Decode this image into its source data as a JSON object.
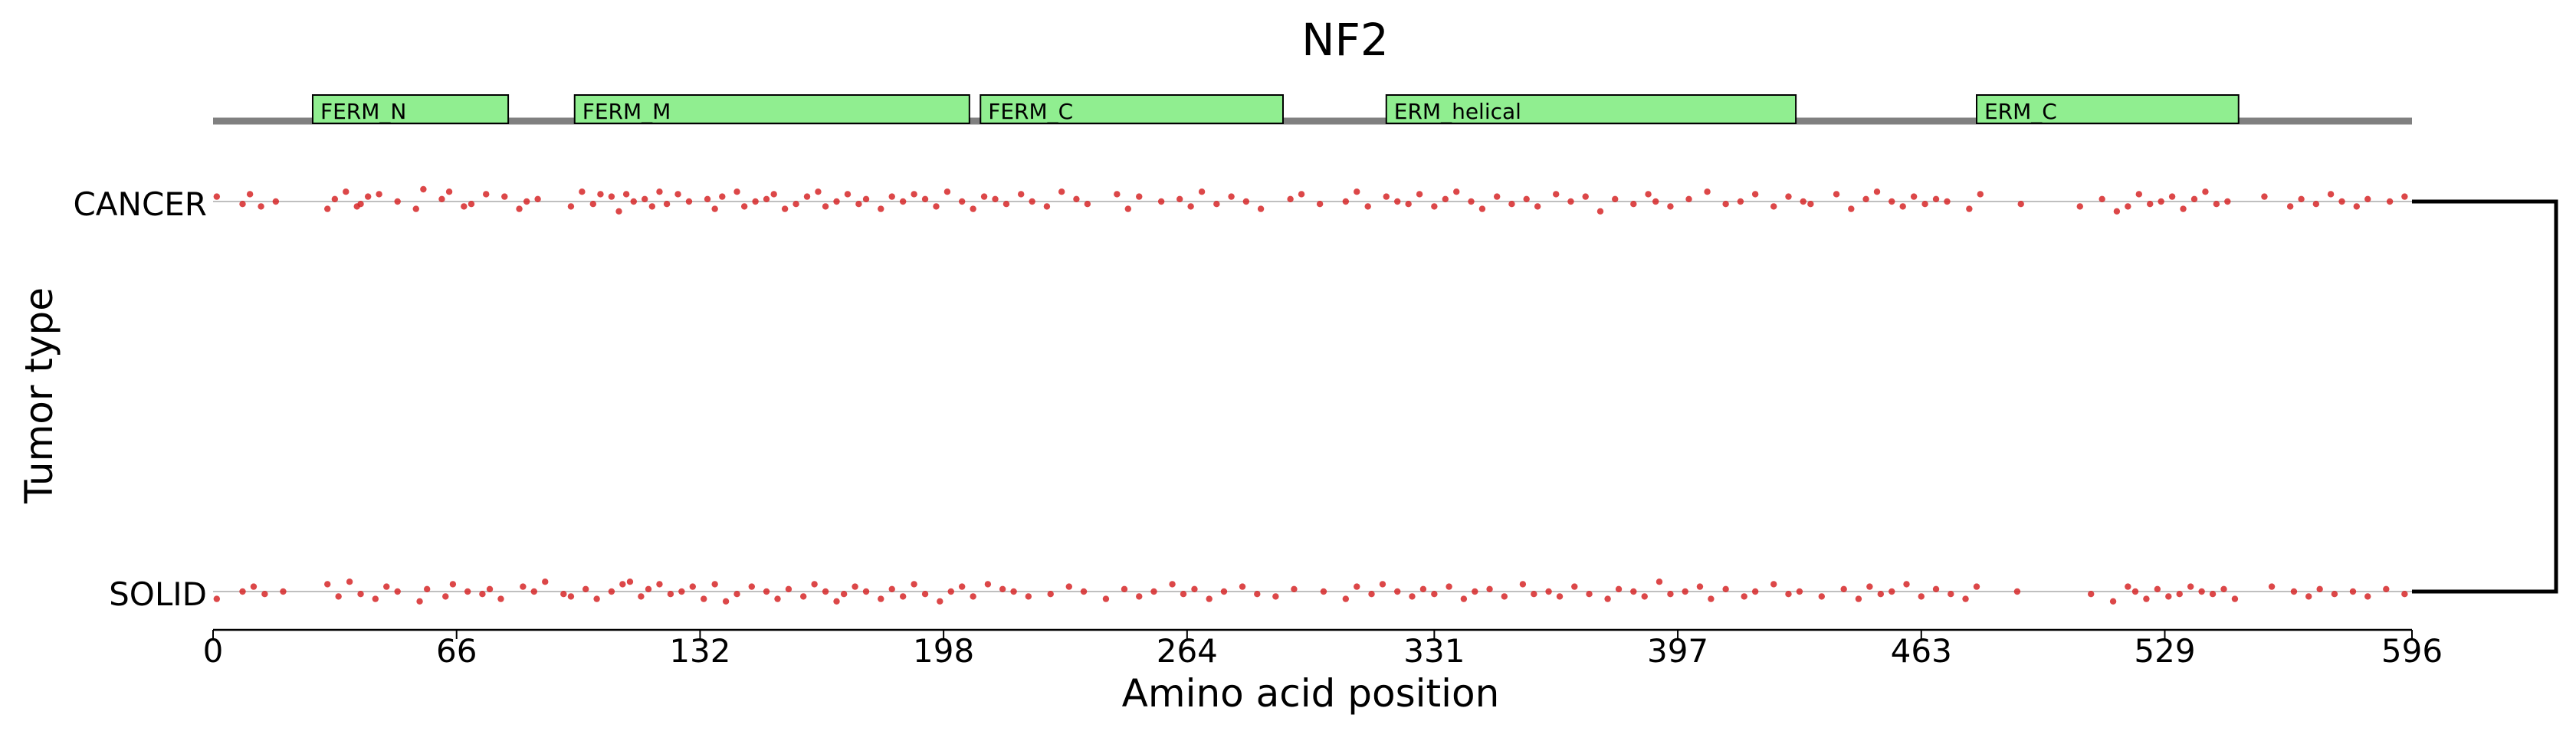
{
  "chart_data": {
    "type": "scatter",
    "title": "NF2",
    "xlabel": "Amino acid position",
    "ylabel": "Tumor type",
    "xlim": [
      0,
      596
    ],
    "xticks": [
      0,
      66,
      132,
      198,
      264,
      331,
      397,
      463,
      529,
      596
    ],
    "categories": [
      "CANCER",
      "SOLID"
    ],
    "domains": [
      {
        "name": "FERM_N",
        "start": 27,
        "end": 80
      },
      {
        "name": "FERM_M",
        "start": 98,
        "end": 205
      },
      {
        "name": "FERM_C",
        "start": 208,
        "end": 290
      },
      {
        "name": "ERM_helical",
        "start": 318,
        "end": 429
      },
      {
        "name": "ERM_C",
        "start": 478,
        "end": 549
      }
    ],
    "series": [
      {
        "name": "CANCER",
        "positions": [
          1,
          8,
          10,
          13,
          17,
          31,
          33,
          36,
          39,
          40,
          42,
          45,
          50,
          55,
          57,
          62,
          64,
          68,
          70,
          74,
          79,
          83,
          85,
          88,
          97,
          100,
          103,
          105,
          108,
          110,
          112,
          114,
          117,
          119,
          121,
          123,
          126,
          129,
          134,
          136,
          138,
          142,
          144,
          147,
          150,
          152,
          155,
          158,
          161,
          164,
          166,
          169,
          172,
          175,
          177,
          181,
          184,
          187,
          190,
          193,
          196,
          199,
          203,
          206,
          209,
          212,
          215,
          219,
          222,
          226,
          230,
          234,
          237,
          245,
          248,
          251,
          257,
          262,
          265,
          268,
          272,
          276,
          280,
          284,
          292,
          295,
          300,
          307,
          310,
          313,
          318,
          321,
          324,
          327,
          331,
          334,
          337,
          341,
          344,
          348,
          352,
          356,
          359,
          364,
          368,
          372,
          376,
          380,
          385,
          389,
          391,
          395,
          400,
          405,
          410,
          414,
          418,
          423,
          427,
          431,
          433,
          440,
          444,
          448,
          451,
          455,
          458,
          461,
          464,
          467,
          470,
          476,
          479,
          490,
          506,
          512,
          516,
          519,
          522,
          525,
          528,
          531,
          534,
          537,
          540,
          543,
          546,
          556,
          563,
          566,
          570,
          574,
          577,
          581,
          584,
          590,
          594
        ],
        "jitter": [
          -2,
          1,
          -3,
          2,
          0,
          3,
          -1,
          -4,
          2,
          1,
          -2,
          -3,
          0,
          3,
          -5,
          -1,
          -4,
          2,
          1,
          -3,
          -2,
          3,
          0,
          -1,
          2,
          -4,
          1,
          -3,
          -2,
          4,
          -3,
          0,
          -1,
          2,
          -4,
          1,
          -3,
          0,
          -1,
          3,
          -2,
          -4,
          2,
          0,
          -1,
          -3,
          3,
          1,
          -2,
          -4,
          2,
          0,
          -3,
          1,
          -1,
          3,
          -2,
          0,
          -3,
          -1,
          2,
          -4,
          0,
          3,
          -2,
          -1,
          1,
          -3,
          0,
          2,
          -4,
          -1,
          1,
          -3,
          3,
          -2,
          0,
          -1,
          2,
          -4,
          1,
          -2,
          0,
          3,
          -1,
          -3,
          1,
          0,
          -4,
          2,
          -2,
          0,
          1,
          -3,
          2,
          -1,
          -4,
          0,
          3,
          -2,
          1,
          -1,
          2,
          -3,
          0,
          -2,
          4,
          -1,
          1,
          -3,
          0,
          2,
          -1,
          -4,
          1,
          0,
          -3,
          2,
          -2,
          0,
          1,
          -3,
          3,
          -1,
          -4,
          0,
          2,
          -2,
          1,
          -1,
          0,
          3,
          -3,
          1,
          2,
          -1,
          4,
          2,
          -3,
          1,
          0,
          -2,
          3,
          -1,
          -4,
          1,
          0,
          -2,
          2,
          -1,
          1,
          -3,
          0,
          2,
          -1,
          0,
          -2
        ]
      },
      {
        "name": "SOLID",
        "positions": [
          1,
          8,
          11,
          14,
          19,
          31,
          34,
          37,
          40,
          44,
          47,
          50,
          56,
          58,
          63,
          65,
          69,
          73,
          75,
          78,
          84,
          87,
          90,
          95,
          97,
          101,
          104,
          108,
          111,
          113,
          116,
          118,
          121,
          124,
          127,
          130,
          133,
          136,
          139,
          142,
          146,
          150,
          153,
          156,
          160,
          163,
          166,
          169,
          171,
          174,
          177,
          181,
          184,
          187,
          190,
          193,
          197,
          200,
          203,
          206,
          210,
          214,
          217,
          221,
          227,
          232,
          236,
          242,
          247,
          251,
          255,
          260,
          263,
          266,
          270,
          274,
          279,
          283,
          288,
          293,
          301,
          307,
          310,
          314,
          317,
          321,
          325,
          328,
          331,
          335,
          339,
          342,
          346,
          350,
          355,
          358,
          362,
          365,
          369,
          373,
          378,
          381,
          385,
          388,
          392,
          395,
          399,
          403,
          406,
          410,
          415,
          418,
          423,
          427,
          430,
          436,
          442,
          446,
          449,
          452,
          455,
          459,
          463,
          467,
          471,
          475,
          478,
          489,
          509,
          515,
          519,
          521,
          524,
          527,
          530,
          533,
          536,
          539,
          542,
          545,
          548,
          558,
          564,
          568,
          571,
          575,
          580,
          584,
          589,
          594
        ],
        "jitter": [
          3,
          0,
          -2,
          1,
          0,
          -3,
          2,
          -4,
          1,
          3,
          -2,
          0,
          4,
          -1,
          2,
          -3,
          0,
          1,
          -1,
          3,
          -2,
          0,
          -4,
          1,
          2,
          -1,
          3,
          0,
          -3,
          -4,
          2,
          -1,
          -3,
          1,
          0,
          -2,
          3,
          -3,
          4,
          1,
          -2,
          0,
          3,
          -1,
          2,
          -3,
          0,
          4,
          1,
          -2,
          0,
          3,
          -1,
          2,
          -3,
          1,
          4,
          0,
          -2,
          2,
          -3,
          -1,
          0,
          2,
          1,
          -2,
          0,
          3,
          -1,
          2,
          0,
          -3,
          1,
          -1,
          3,
          0,
          -2,
          1,
          2,
          -1,
          0,
          3,
          -2,
          1,
          -3,
          0,
          2,
          -1,
          1,
          -2,
          3,
          0,
          -1,
          2,
          -3,
          1,
          0,
          2,
          -2,
          1,
          3,
          -1,
          0,
          2,
          -4,
          1,
          0,
          -2,
          3,
          -1,
          2,
          0,
          -3,
          1,
          0,
          2,
          -1,
          3,
          -2,
          1,
          0,
          -3,
          2,
          -1,
          1,
          3,
          -2,
          0,
          1,
          4,
          -2,
          0,
          3,
          -1,
          2,
          1,
          -2,
          0,
          1,
          -1,
          3,
          -2,
          0,
          2,
          -1,
          1,
          0,
          2,
          -1,
          1
        ]
      }
    ],
    "grid": false,
    "colors": {
      "point": "#d62728",
      "domain_fill": "#90ee90",
      "domain_edge": "#000000",
      "backbone": "#808080",
      "guide": "#bfbfbf",
      "bracket": "#000000"
    }
  }
}
